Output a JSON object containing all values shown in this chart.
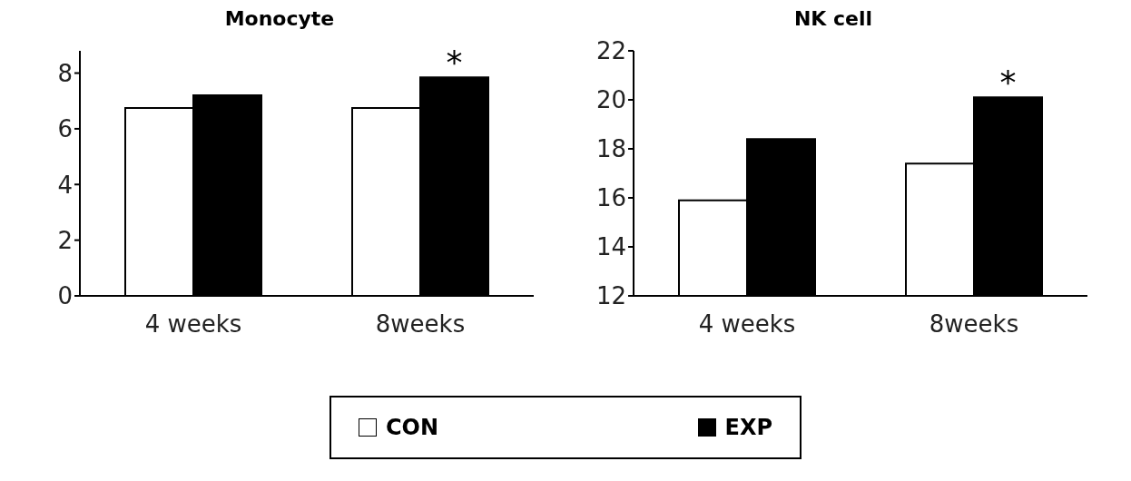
{
  "chart_data": [
    {
      "type": "bar",
      "title": "Monocyte",
      "categories": [
        "4 weeks",
        "8weeks"
      ],
      "series": [
        {
          "name": "CON",
          "color": "#ffffff",
          "values": [
            6.75,
            6.75
          ]
        },
        {
          "name": "EXP",
          "color": "#000000",
          "values": [
            7.2,
            7.85
          ]
        }
      ],
      "ylim": [
        0,
        8.8
      ],
      "yticks": [
        0,
        2,
        4,
        6,
        8
      ],
      "grid": false,
      "legend": "bottom",
      "annotations": [
        {
          "text": "*",
          "x": "8weeks",
          "y": 7.85
        }
      ]
    },
    {
      "type": "bar",
      "title": "NK cell",
      "categories": [
        "4 weeks",
        "8weeks"
      ],
      "series": [
        {
          "name": "CON",
          "color": "#ffffff",
          "values": [
            15.9,
            17.4
          ]
        },
        {
          "name": "EXP",
          "color": "#000000",
          "values": [
            18.4,
            20.1
          ]
        }
      ],
      "ylim": [
        12,
        22
      ],
      "yticks": [
        12,
        14,
        16,
        18,
        20,
        22
      ],
      "grid": false,
      "annotations": [
        {
          "text": "*",
          "x": "8weeks",
          "y": 20.1
        }
      ]
    }
  ]
}
